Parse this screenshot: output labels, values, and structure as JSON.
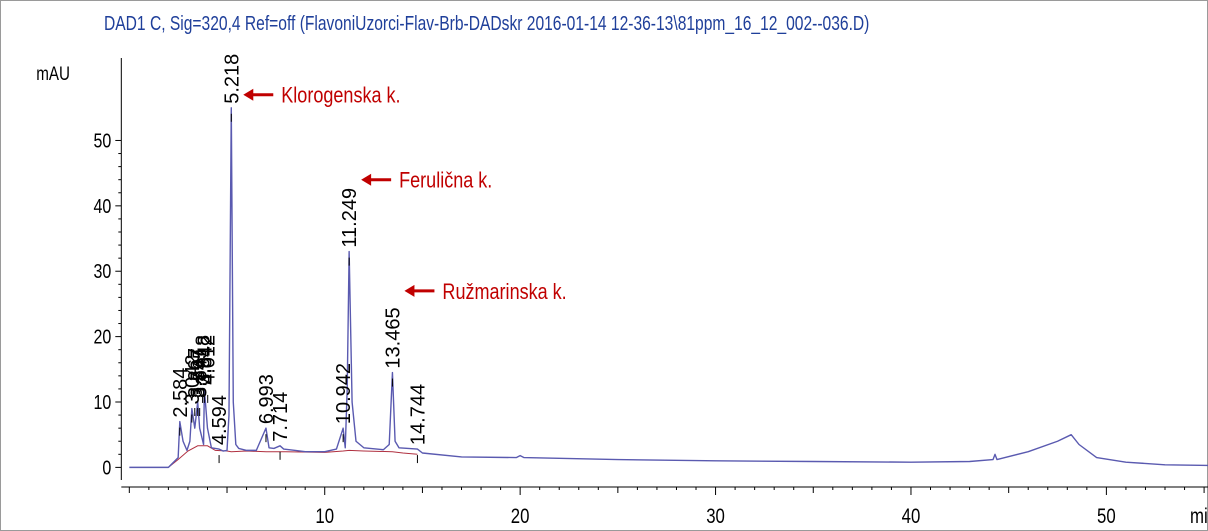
{
  "chart_data": {
    "type": "line",
    "title": "DAD1 C, Sig=320,4 Ref=off (FlavoniUzorci-Flav-Brb-DADskr 2016-01-14 12-36-13\\81ppm_16_12_002--036.D)",
    "xlabel": "min",
    "ylabel": "mAU",
    "xlim": [
      -1.5,
      55.2
    ],
    "ylim": [
      -3,
      62
    ],
    "x_ticks": [
      10,
      20,
      30,
      40,
      50
    ],
    "y_ticks": [
      0,
      10,
      20,
      30,
      40,
      50
    ],
    "series": [
      {
        "trace": [
          [
            0,
            0
          ],
          [
            2.0,
            0
          ],
          [
            2.5,
            1.5
          ],
          [
            2.584,
            7
          ],
          [
            2.75,
            4
          ],
          [
            2.95,
            2.6
          ],
          [
            3.1,
            4
          ],
          [
            3.2,
            9
          ],
          [
            3.35,
            6
          ],
          [
            3.5,
            10
          ],
          [
            3.6,
            6
          ],
          [
            3.8,
            3.5
          ],
          [
            3.84,
            12
          ],
          [
            4.0,
            6
          ],
          [
            4.2,
            3
          ],
          [
            4.594,
            2.8
          ],
          [
            4.8,
            2.5
          ],
          [
            5.0,
            2.6
          ],
          [
            5.1,
            8
          ],
          [
            5.218,
            55
          ],
          [
            5.32,
            10
          ],
          [
            5.45,
            3.5
          ],
          [
            5.6,
            2.9
          ],
          [
            6.0,
            2.6
          ],
          [
            6.5,
            2.6
          ],
          [
            6.993,
            6
          ],
          [
            7.15,
            3
          ],
          [
            7.4,
            2.9
          ],
          [
            7.714,
            3.3
          ],
          [
            7.9,
            2.8
          ],
          [
            8.5,
            2.6
          ],
          [
            9.0,
            2.4
          ],
          [
            10.0,
            2.4
          ],
          [
            10.6,
            2.8
          ],
          [
            10.942,
            6
          ],
          [
            11.05,
            3
          ],
          [
            11.15,
            12
          ],
          [
            11.249,
            33
          ],
          [
            11.4,
            10
          ],
          [
            11.6,
            4
          ],
          [
            12.0,
            3
          ],
          [
            13.0,
            2.7
          ],
          [
            13.3,
            3.5
          ],
          [
            13.465,
            14.5
          ],
          [
            13.6,
            4
          ],
          [
            13.8,
            3
          ],
          [
            14.744,
            2.8
          ],
          [
            15.0,
            2.2
          ],
          [
            17.0,
            1.6
          ],
          [
            19.8,
            1.5
          ],
          [
            20.0,
            1.8
          ],
          [
            20.2,
            1.5
          ],
          [
            25.0,
            1.2
          ],
          [
            30.0,
            1.0
          ],
          [
            35.0,
            0.9
          ],
          [
            40.0,
            0.8
          ],
          [
            43.0,
            0.9
          ],
          [
            44.2,
            1.2
          ],
          [
            44.3,
            2
          ],
          [
            44.4,
            1.2
          ],
          [
            46.0,
            2.4
          ],
          [
            47.5,
            4
          ],
          [
            48.2,
            5
          ],
          [
            48.6,
            3.5
          ],
          [
            49.5,
            1.5
          ],
          [
            51.0,
            0.8
          ],
          [
            53.0,
            0.4
          ],
          [
            55.2,
            0.3
          ]
        ]
      },
      {
        "trace": [
          [
            2.0,
            0
          ],
          [
            2.5,
            1.2
          ],
          [
            3.0,
            2.5
          ],
          [
            3.5,
            3.3
          ],
          [
            4.0,
            3.3
          ],
          [
            4.4,
            2.6
          ],
          [
            5.0,
            2.5
          ],
          [
            5.218,
            2.4
          ],
          [
            6.0,
            2.5
          ],
          [
            7.0,
            2.4
          ],
          [
            8.0,
            2.4
          ],
          [
            10.0,
            2.3
          ],
          [
            10.942,
            2.5
          ],
          [
            11.249,
            2.6
          ],
          [
            12.0,
            2.5
          ],
          [
            13.465,
            2.4
          ],
          [
            14.0,
            2.2
          ],
          [
            14.744,
            2.0
          ]
        ]
      }
    ],
    "peak_labels": [
      {
        "x": 2.584,
        "y": 7,
        "label": "2.584"
      },
      {
        "x": 3.2,
        "y": 9,
        "label": "3.042"
      },
      {
        "x": 3.35,
        "y": 10,
        "label": "3.267"
      },
      {
        "x": 3.5,
        "y": 10,
        "label": "3.597"
      },
      {
        "x": 3.6,
        "y": 10,
        "label": "3.845"
      },
      {
        "x": 3.75,
        "y": 12,
        "label": "3.918"
      },
      {
        "x": 3.84,
        "y": 12,
        "label": "3.842"
      },
      {
        "x": 4.012,
        "y": 12,
        "label": "4.012"
      },
      {
        "x": 4.594,
        "y": 2.8,
        "label": "4.594"
      },
      {
        "x": 5.218,
        "y": 55,
        "label": "5.218"
      },
      {
        "x": 6.993,
        "y": 6,
        "label": "6.993"
      },
      {
        "x": 7.714,
        "y": 3.3,
        "label": "7.714"
      },
      {
        "x": 10.942,
        "y": 6,
        "label": "10.942"
      },
      {
        "x": 11.249,
        "y": 33,
        "label": "11.249"
      },
      {
        "x": 13.465,
        "y": 14.5,
        "label": "13.465"
      },
      {
        "x": 14.744,
        "y": 2.8,
        "label": "14.744"
      }
    ],
    "annotations": [
      {
        "label": "Klorogenska k.",
        "x": 5.218,
        "y": 57
      },
      {
        "label": "Ferulična k.",
        "x": 11.249,
        "y": 44
      },
      {
        "label": "Ružmarinska k.",
        "x": 13.465,
        "y": 27
      }
    ],
    "grid": false,
    "legend": "none"
  },
  "colors": {
    "trace": "#5a5ab0",
    "baseline": "#b03040",
    "title": "#1f3f9a",
    "annotation": "#c00000",
    "axis": "#000000"
  }
}
